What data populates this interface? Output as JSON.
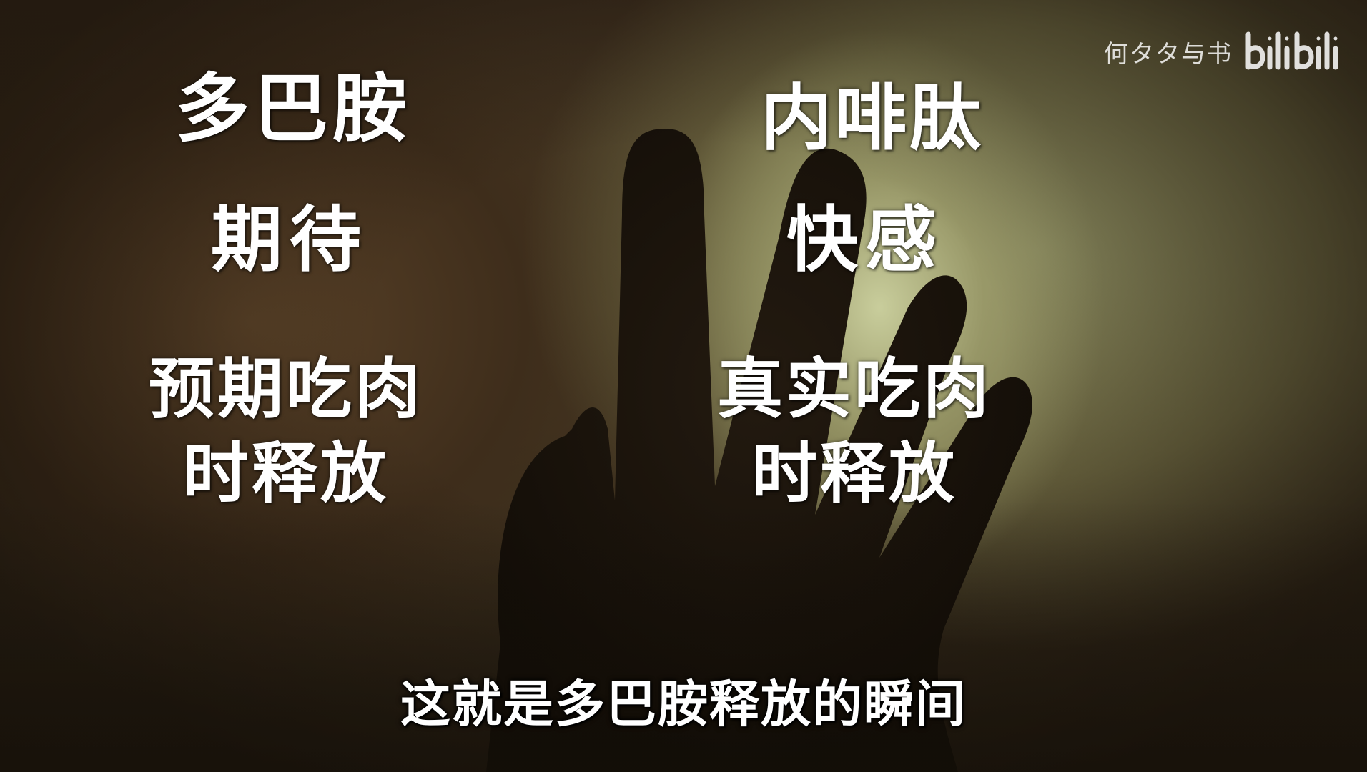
{
  "watermark": {
    "author": "何タタ与书",
    "logo_text": "bilibili",
    "logo_icon": "bilibili-logo"
  },
  "labels": {
    "dopamine": "多巴胺",
    "endorphin": "内啡肽",
    "expectation": "期待",
    "pleasure": "快感",
    "left_line1": "预期吃肉",
    "left_line2": "时释放",
    "right_line1": "真实吃肉",
    "right_line2": "时释放"
  },
  "subtitle": "这就是多巴胺释放的瞬间",
  "colors": {
    "text": "#ffffff",
    "background_dark": "#2a2115",
    "light_glow": "#cdd2a0"
  }
}
